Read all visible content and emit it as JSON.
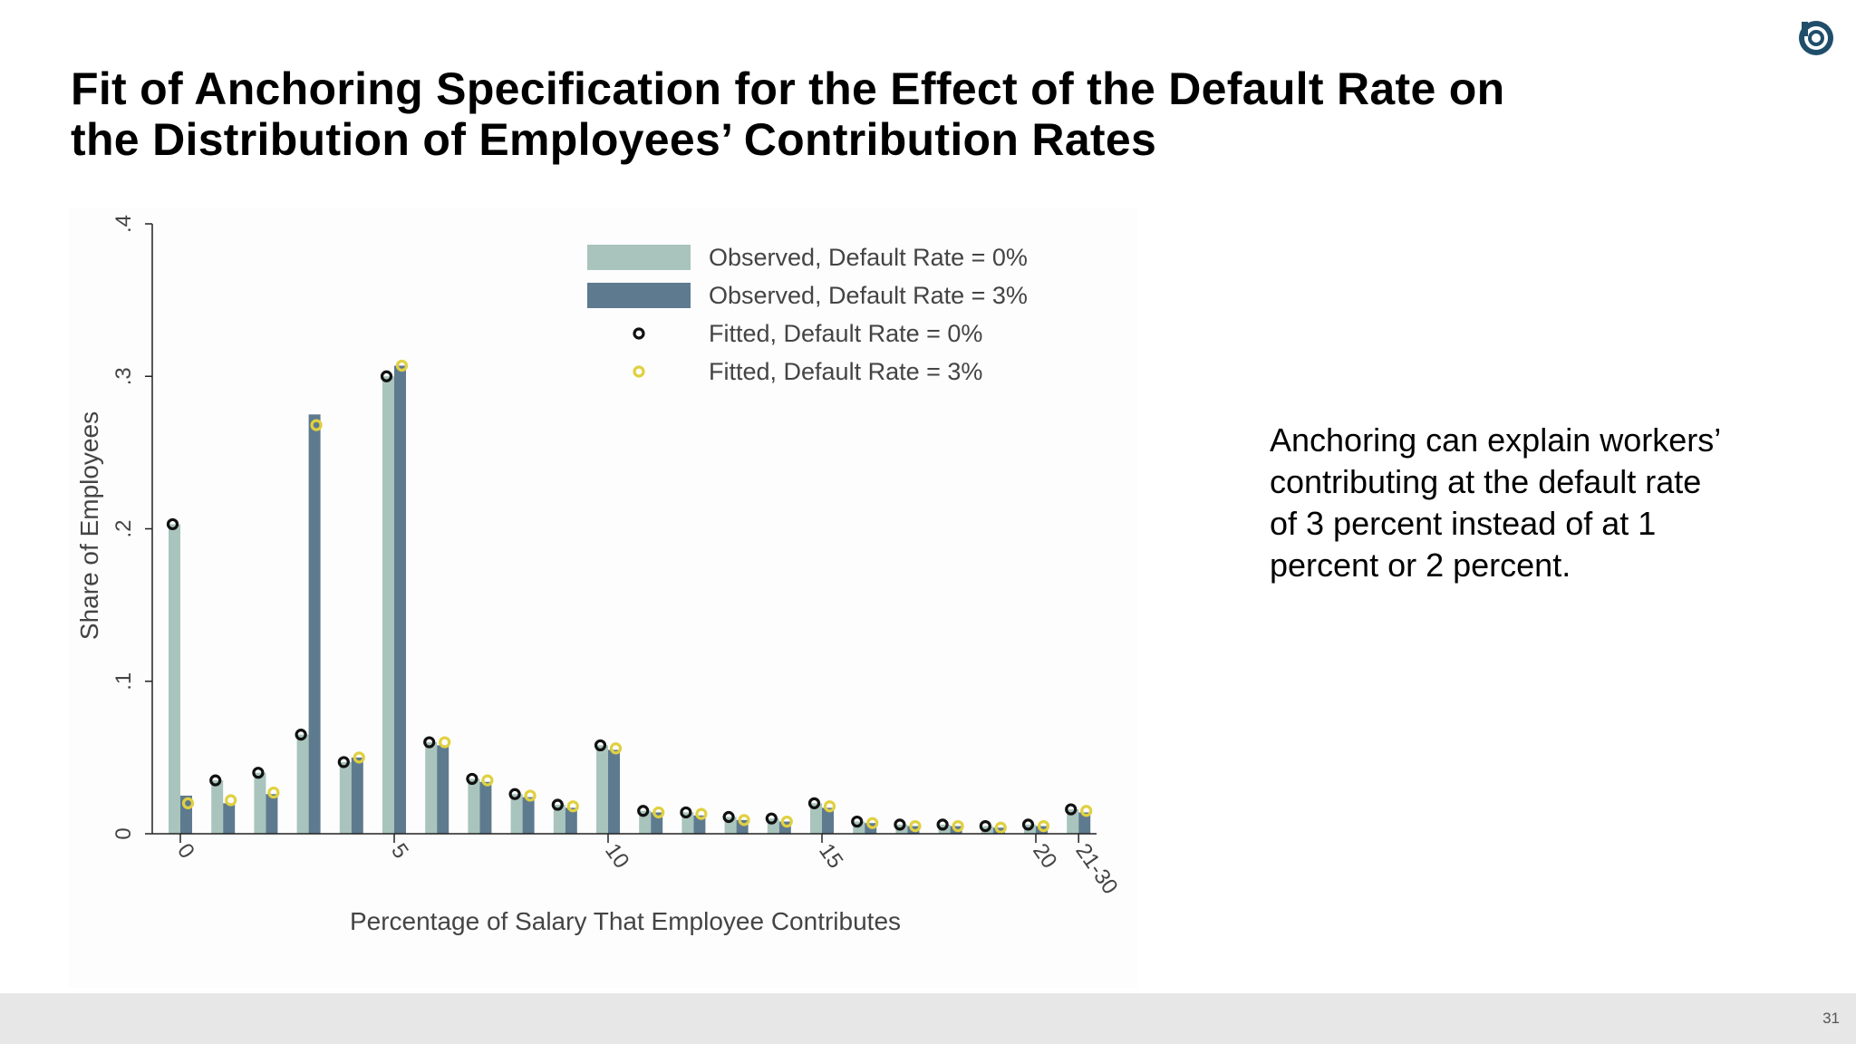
{
  "slide": {
    "title_line1": "Fit of Anchoring Specification for the Effect of the Default Rate on",
    "title_line2": "the Distribution of Employees’ Contribution Rates",
    "side_text": "Anchoring can explain workers’ contributing at the default rate of 3 percent instead of at 1 percent or 2 percent.",
    "page_number": "31"
  },
  "chart_data": {
    "type": "bar",
    "xlabel": "Percentage of Salary That Employee Contributes",
    "ylabel": "Share of Employees",
    "ylim": [
      0,
      0.4
    ],
    "yticks": [
      0,
      0.1,
      0.2,
      0.3,
      0.4
    ],
    "ytick_labels": [
      "0",
      ".1",
      ".2",
      ".3",
      ".4"
    ],
    "categories": [
      "0",
      "1",
      "2",
      "3",
      "4",
      "5",
      "6",
      "7",
      "8",
      "9",
      "10",
      "11",
      "12",
      "13",
      "14",
      "15",
      "16",
      "17",
      "18",
      "19",
      "20",
      "21-30"
    ],
    "xtick_labels": [
      {
        "category": "0",
        "label": "0"
      },
      {
        "category": "5",
        "label": "5"
      },
      {
        "category": "10",
        "label": "10"
      },
      {
        "category": "15",
        "label": "15"
      },
      {
        "category": "20",
        "label": "20"
      },
      {
        "category": "21-30",
        "label": "21-30"
      }
    ],
    "legend_position": "top-right",
    "series": [
      {
        "name": "Observed, Default Rate = 0%",
        "kind": "bar",
        "color": "#a9c4bd",
        "values": [
          0.203,
          0.035,
          0.04,
          0.065,
          0.047,
          0.3,
          0.06,
          0.036,
          0.026,
          0.019,
          0.058,
          0.015,
          0.014,
          0.011,
          0.01,
          0.02,
          0.008,
          0.006,
          0.006,
          0.005,
          0.006,
          0.016
        ]
      },
      {
        "name": "Observed, Default Rate = 3%",
        "kind": "bar",
        "color": "#5e7a8f",
        "values": [
          0.025,
          0.02,
          0.026,
          0.275,
          0.05,
          0.307,
          0.058,
          0.034,
          0.024,
          0.017,
          0.055,
          0.014,
          0.012,
          0.009,
          0.008,
          0.017,
          0.007,
          0.005,
          0.005,
          0.004,
          0.005,
          0.014
        ]
      },
      {
        "name": "Fitted, Default Rate = 0%",
        "kind": "marker",
        "color": "#111111",
        "values": [
          0.203,
          0.035,
          0.04,
          0.065,
          0.047,
          0.3,
          0.06,
          0.036,
          0.026,
          0.019,
          0.058,
          0.015,
          0.014,
          0.011,
          0.01,
          0.02,
          0.008,
          0.006,
          0.006,
          0.005,
          0.006,
          0.016
        ]
      },
      {
        "name": "Fitted, Default Rate = 3%",
        "kind": "marker",
        "color": "#e0d040",
        "values": [
          0.02,
          0.022,
          0.027,
          0.268,
          0.05,
          0.307,
          0.06,
          0.035,
          0.025,
          0.018,
          0.056,
          0.014,
          0.013,
          0.009,
          0.008,
          0.018,
          0.007,
          0.005,
          0.005,
          0.004,
          0.005,
          0.015
        ]
      }
    ]
  }
}
